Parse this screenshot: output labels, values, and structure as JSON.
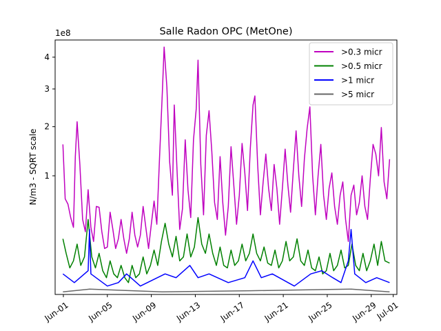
{
  "chart_data": {
    "type": "line",
    "title": "Salle Radon OPC (MetOne)",
    "ylabel": "N/m3 - SQRT scale",
    "xlabel": "",
    "y_scale": "sqrt",
    "y_offset_label": "1e8",
    "y_unit_multiplier": 100000000,
    "ylim": [
      0,
      4.6
    ],
    "yticks": [
      1,
      2,
      3,
      4
    ],
    "xlim": [
      "2021-05-31T06:00",
      "2021-07-01T08:00"
    ],
    "xticks": [
      "Jun-01",
      "Jun-05",
      "Jun-09",
      "Jun-13",
      "Jun-17",
      "Jun-21",
      "Jun-25",
      "Jun-29",
      "Jul-01"
    ],
    "xtick_dates": [
      "2021-06-01",
      "2021-06-05",
      "2021-06-09",
      "2021-06-13",
      "2021-06-17",
      "2021-06-21",
      "2021-06-25",
      "2021-06-29",
      "2021-07-01"
    ],
    "grid": false,
    "legend_position": "top-right",
    "series": [
      {
        "name": ">0.3 micr",
        "color": "#bf00bf",
        "points": [
          [
            "2021-05-31T23:00",
            1.6
          ],
          [
            "2021-06-01T04:00",
            0.65
          ],
          [
            "2021-06-01T10:00",
            0.58
          ],
          [
            "2021-06-01T16:00",
            0.42
          ],
          [
            "2021-06-01T22:00",
            0.32
          ],
          [
            "2021-06-02T02:00",
            1.35
          ],
          [
            "2021-06-02T06:00",
            2.12
          ],
          [
            "2021-06-02T12:00",
            1.2
          ],
          [
            "2021-06-02T18:00",
            0.4
          ],
          [
            "2021-06-03T00:00",
            0.28
          ],
          [
            "2021-06-03T06:00",
            0.78
          ],
          [
            "2021-06-03T12:00",
            0.32
          ],
          [
            "2021-06-03T18:00",
            0.2
          ],
          [
            "2021-06-04T00:00",
            0.55
          ],
          [
            "2021-06-04T06:00",
            0.54
          ],
          [
            "2021-06-04T12:00",
            0.28
          ],
          [
            "2021-06-04T18:00",
            0.15
          ],
          [
            "2021-06-05T00:00",
            0.16
          ],
          [
            "2021-06-05T06:00",
            0.48
          ],
          [
            "2021-06-05T12:00",
            0.3
          ],
          [
            "2021-06-05T18:00",
            0.15
          ],
          [
            "2021-06-06T00:00",
            0.22
          ],
          [
            "2021-06-06T06:00",
            0.4
          ],
          [
            "2021-06-06T12:00",
            0.22
          ],
          [
            "2021-06-06T18:00",
            0.12
          ],
          [
            "2021-06-07T00:00",
            0.22
          ],
          [
            "2021-06-07T06:00",
            0.48
          ],
          [
            "2021-06-07T12:00",
            0.25
          ],
          [
            "2021-06-07T18:00",
            0.16
          ],
          [
            "2021-06-08T00:00",
            0.25
          ],
          [
            "2021-06-08T06:00",
            0.55
          ],
          [
            "2021-06-08T12:00",
            0.32
          ],
          [
            "2021-06-08T18:00",
            0.15
          ],
          [
            "2021-06-09T00:00",
            0.35
          ],
          [
            "2021-06-09T06:00",
            0.62
          ],
          [
            "2021-06-09T12:00",
            0.35
          ],
          [
            "2021-06-09T18:00",
            1.35
          ],
          [
            "2021-06-10T00:00",
            2.9
          ],
          [
            "2021-06-10T04:00",
            4.35
          ],
          [
            "2021-06-10T10:00",
            3.05
          ],
          [
            "2021-06-10T16:00",
            1.25
          ],
          [
            "2021-06-10T22:00",
            0.7
          ],
          [
            "2021-06-11T02:00",
            2.55
          ],
          [
            "2021-06-11T08:00",
            1.1
          ],
          [
            "2021-06-11T14:00",
            0.3
          ],
          [
            "2021-06-11T20:00",
            0.52
          ],
          [
            "2021-06-12T02:00",
            1.7
          ],
          [
            "2021-06-12T08:00",
            0.78
          ],
          [
            "2021-06-12T14:00",
            0.42
          ],
          [
            "2021-06-12T20:00",
            1.7
          ],
          [
            "2021-06-13T02:00",
            2.45
          ],
          [
            "2021-06-13T06:00",
            3.9
          ],
          [
            "2021-06-13T12:00",
            1.2
          ],
          [
            "2021-06-13T18:00",
            0.45
          ],
          [
            "2021-06-14T00:00",
            1.8
          ],
          [
            "2021-06-14T06:00",
            2.4
          ],
          [
            "2021-06-14T12:00",
            1.45
          ],
          [
            "2021-06-14T18:00",
            0.6
          ],
          [
            "2021-06-15T00:00",
            0.4
          ],
          [
            "2021-06-15T06:00",
            1.35
          ],
          [
            "2021-06-15T12:00",
            0.6
          ],
          [
            "2021-06-15T18:00",
            0.25
          ],
          [
            "2021-06-16T00:00",
            0.55
          ],
          [
            "2021-06-16T06:00",
            1.55
          ],
          [
            "2021-06-16T12:00",
            0.85
          ],
          [
            "2021-06-16T18:00",
            0.35
          ],
          [
            "2021-06-17T00:00",
            0.7
          ],
          [
            "2021-06-17T06:00",
            1.62
          ],
          [
            "2021-06-17T12:00",
            1.05
          ],
          [
            "2021-06-17T18:00",
            0.5
          ],
          [
            "2021-06-18T00:00",
            1.5
          ],
          [
            "2021-06-18T06:00",
            2.55
          ],
          [
            "2021-06-18T10:00",
            2.8
          ],
          [
            "2021-06-18T16:00",
            1.2
          ],
          [
            "2021-06-18T22:00",
            0.45
          ],
          [
            "2021-06-19T04:00",
            0.9
          ],
          [
            "2021-06-19T10:00",
            1.4
          ],
          [
            "2021-06-19T16:00",
            0.8
          ],
          [
            "2021-06-19T22:00",
            0.5
          ],
          [
            "2021-06-20T04:00",
            1.2
          ],
          [
            "2021-06-20T10:00",
            0.8
          ],
          [
            "2021-06-20T16:00",
            0.35
          ],
          [
            "2021-06-20T22:00",
            0.8
          ],
          [
            "2021-06-21T04:00",
            1.5
          ],
          [
            "2021-06-21T10:00",
            0.85
          ],
          [
            "2021-06-21T16:00",
            0.48
          ],
          [
            "2021-06-21T22:00",
            1.1
          ],
          [
            "2021-06-22T04:00",
            1.9
          ],
          [
            "2021-06-22T10:00",
            1.0
          ],
          [
            "2021-06-22T16:00",
            0.55
          ],
          [
            "2021-06-22T22:00",
            1.3
          ],
          [
            "2021-06-23T04:00",
            1.95
          ],
          [
            "2021-06-23T10:00",
            2.5
          ],
          [
            "2021-06-23T16:00",
            1.0
          ],
          [
            "2021-06-23T22:00",
            0.45
          ],
          [
            "2021-06-24T04:00",
            1.0
          ],
          [
            "2021-06-24T10:00",
            1.6
          ],
          [
            "2021-06-24T16:00",
            0.7
          ],
          [
            "2021-06-24T22:00",
            0.4
          ],
          [
            "2021-06-25T04:00",
            0.8
          ],
          [
            "2021-06-25T10:00",
            1.05
          ],
          [
            "2021-06-25T16:00",
            0.55
          ],
          [
            "2021-06-25T22:00",
            0.35
          ],
          [
            "2021-06-26T04:00",
            0.7
          ],
          [
            "2021-06-26T10:00",
            0.9
          ],
          [
            "2021-06-26T16:00",
            0.4
          ],
          [
            "2021-06-26T22:00",
            0.2
          ],
          [
            "2021-06-27T04:00",
            0.7
          ],
          [
            "2021-06-27T10:00",
            0.85
          ],
          [
            "2021-06-27T16:00",
            0.45
          ],
          [
            "2021-06-27T22:00",
            0.6
          ],
          [
            "2021-06-28T04:00",
            1.0
          ],
          [
            "2021-06-28T10:00",
            0.55
          ],
          [
            "2021-06-28T16:00",
            0.4
          ],
          [
            "2021-06-28T22:00",
            0.95
          ],
          [
            "2021-06-29T04:00",
            1.6
          ],
          [
            "2021-06-29T10:00",
            1.4
          ],
          [
            "2021-06-29T16:00",
            1.0
          ],
          [
            "2021-06-29T22:00",
            1.98
          ],
          [
            "2021-06-30T04:00",
            0.9
          ],
          [
            "2021-06-30T10:00",
            0.65
          ],
          [
            "2021-06-30T16:00",
            1.3
          ]
        ]
      },
      {
        "name": ">0.5 micr",
        "color": "#008000",
        "points": [
          [
            "2021-05-31T23:00",
            0.22
          ],
          [
            "2021-06-01T06:00",
            0.12
          ],
          [
            "2021-06-01T14:00",
            0.05
          ],
          [
            "2021-06-01T22:00",
            0.08
          ],
          [
            "2021-06-02T06:00",
            0.18
          ],
          [
            "2021-06-02T14:00",
            0.06
          ],
          [
            "2021-06-02T22:00",
            0.1
          ],
          [
            "2021-06-03T06:00",
            0.4
          ],
          [
            "2021-06-03T14:00",
            0.1
          ],
          [
            "2021-06-03T22:00",
            0.05
          ],
          [
            "2021-06-04T06:00",
            0.12
          ],
          [
            "2021-06-04T14:00",
            0.04
          ],
          [
            "2021-06-04T22:00",
            0.02
          ],
          [
            "2021-06-05T06:00",
            0.08
          ],
          [
            "2021-06-05T14:00",
            0.03
          ],
          [
            "2021-06-05T22:00",
            0.02
          ],
          [
            "2021-06-06T06:00",
            0.06
          ],
          [
            "2021-06-06T14:00",
            0.02
          ],
          [
            "2021-06-06T22:00",
            0.01
          ],
          [
            "2021-06-07T06:00",
            0.06
          ],
          [
            "2021-06-07T14:00",
            0.02
          ],
          [
            "2021-06-07T22:00",
            0.03
          ],
          [
            "2021-06-08T06:00",
            0.1
          ],
          [
            "2021-06-08T14:00",
            0.03
          ],
          [
            "2021-06-08T22:00",
            0.06
          ],
          [
            "2021-06-09T06:00",
            0.14
          ],
          [
            "2021-06-09T14:00",
            0.06
          ],
          [
            "2021-06-09T22:00",
            0.2
          ],
          [
            "2021-06-10T06:00",
            0.36
          ],
          [
            "2021-06-10T14:00",
            0.18
          ],
          [
            "2021-06-10T22:00",
            0.1
          ],
          [
            "2021-06-11T06:00",
            0.24
          ],
          [
            "2021-06-11T14:00",
            0.08
          ],
          [
            "2021-06-11T22:00",
            0.1
          ],
          [
            "2021-06-12T06:00",
            0.26
          ],
          [
            "2021-06-12T14:00",
            0.1
          ],
          [
            "2021-06-12T22:00",
            0.16
          ],
          [
            "2021-06-13T06:00",
            0.42
          ],
          [
            "2021-06-13T14:00",
            0.18
          ],
          [
            "2021-06-13T22:00",
            0.12
          ],
          [
            "2021-06-14T06:00",
            0.26
          ],
          [
            "2021-06-14T14:00",
            0.12
          ],
          [
            "2021-06-14T22:00",
            0.06
          ],
          [
            "2021-06-15T06:00",
            0.16
          ],
          [
            "2021-06-15T14:00",
            0.06
          ],
          [
            "2021-06-15T22:00",
            0.05
          ],
          [
            "2021-06-16T06:00",
            0.14
          ],
          [
            "2021-06-16T14:00",
            0.06
          ],
          [
            "2021-06-16T22:00",
            0.08
          ],
          [
            "2021-06-17T06:00",
            0.18
          ],
          [
            "2021-06-17T14:00",
            0.08
          ],
          [
            "2021-06-17T22:00",
            0.12
          ],
          [
            "2021-06-18T06:00",
            0.26
          ],
          [
            "2021-06-18T14:00",
            0.12
          ],
          [
            "2021-06-18T22:00",
            0.08
          ],
          [
            "2021-06-19T06:00",
            0.16
          ],
          [
            "2021-06-19T14:00",
            0.07
          ],
          [
            "2021-06-19T22:00",
            0.06
          ],
          [
            "2021-06-20T06:00",
            0.14
          ],
          [
            "2021-06-20T14:00",
            0.05
          ],
          [
            "2021-06-20T22:00",
            0.08
          ],
          [
            "2021-06-21T06:00",
            0.2
          ],
          [
            "2021-06-21T14:00",
            0.08
          ],
          [
            "2021-06-21T22:00",
            0.1
          ],
          [
            "2021-06-22T06:00",
            0.22
          ],
          [
            "2021-06-22T14:00",
            0.08
          ],
          [
            "2021-06-22T22:00",
            0.06
          ],
          [
            "2021-06-23T06:00",
            0.14
          ],
          [
            "2021-06-23T14:00",
            0.05
          ],
          [
            "2021-06-23T22:00",
            0.04
          ],
          [
            "2021-06-24T06:00",
            0.1
          ],
          [
            "2021-06-24T14:00",
            0.03
          ],
          [
            "2021-06-24T22:00",
            0.04
          ],
          [
            "2021-06-25T06:00",
            0.12
          ],
          [
            "2021-06-25T14:00",
            0.04
          ],
          [
            "2021-06-25T22:00",
            0.06
          ],
          [
            "2021-06-26T06:00",
            0.14
          ],
          [
            "2021-06-26T14:00",
            0.05
          ],
          [
            "2021-06-26T22:00",
            0.06
          ],
          [
            "2021-06-27T06:00",
            0.18
          ],
          [
            "2021-06-27T14:00",
            0.06
          ],
          [
            "2021-06-27T22:00",
            0.04
          ],
          [
            "2021-06-28T06:00",
            0.12
          ],
          [
            "2021-06-28T14:00",
            0.04
          ],
          [
            "2021-06-28T22:00",
            0.08
          ],
          [
            "2021-06-29T06:00",
            0.18
          ],
          [
            "2021-06-29T14:00",
            0.06
          ],
          [
            "2021-06-29T22:00",
            0.2
          ],
          [
            "2021-06-30T06:00",
            0.08
          ],
          [
            "2021-06-30T16:00",
            0.07
          ]
        ]
      },
      {
        "name": ">1 micr",
        "color": "#0000ff",
        "points": [
          [
            "2021-05-31T23:00",
            0.03
          ],
          [
            "2021-06-02T00:00",
            0.01
          ],
          [
            "2021-06-03T06:00",
            0.04
          ],
          [
            "2021-06-03T09:00",
            0.3
          ],
          [
            "2021-06-03T12:00",
            0.03
          ],
          [
            "2021-06-05T00:00",
            0.005
          ],
          [
            "2021-06-06T00:00",
            0.01
          ],
          [
            "2021-06-06T18:00",
            0.03
          ],
          [
            "2021-06-08T00:00",
            0.005
          ],
          [
            "2021-06-10T06:00",
            0.03
          ],
          [
            "2021-06-11T06:00",
            0.02
          ],
          [
            "2021-06-12T12:00",
            0.06
          ],
          [
            "2021-06-13T06:00",
            0.02
          ],
          [
            "2021-06-14T06:00",
            0.03
          ],
          [
            "2021-06-16T00:00",
            0.01
          ],
          [
            "2021-06-17T12:00",
            0.02
          ],
          [
            "2021-06-18T06:00",
            0.08
          ],
          [
            "2021-06-19T00:00",
            0.02
          ],
          [
            "2021-06-20T00:00",
            0.03
          ],
          [
            "2021-06-22T00:00",
            0.005
          ],
          [
            "2021-06-23T12:00",
            0.03
          ],
          [
            "2021-06-24T12:00",
            0.04
          ],
          [
            "2021-06-25T12:00",
            0.02
          ],
          [
            "2021-06-26T06:00",
            0.01
          ],
          [
            "2021-06-26T22:00",
            0.08
          ],
          [
            "2021-06-27T04:00",
            0.3
          ],
          [
            "2021-06-27T12:00",
            0.03
          ],
          [
            "2021-06-28T12:00",
            0.01
          ],
          [
            "2021-06-29T12:00",
            0.02
          ],
          [
            "2021-06-30T16:00",
            0.01
          ]
        ]
      },
      {
        "name": ">5 micr",
        "color": "#666666",
        "points": [
          [
            "2021-05-31T23:00",
            0.0005
          ],
          [
            "2021-06-03T09:00",
            0.002
          ],
          [
            "2021-06-10T00:00",
            0.0005
          ],
          [
            "2021-06-18T00:00",
            0.001
          ],
          [
            "2021-06-27T04:00",
            0.002
          ],
          [
            "2021-06-30T16:00",
            0.0005
          ]
        ]
      }
    ]
  }
}
